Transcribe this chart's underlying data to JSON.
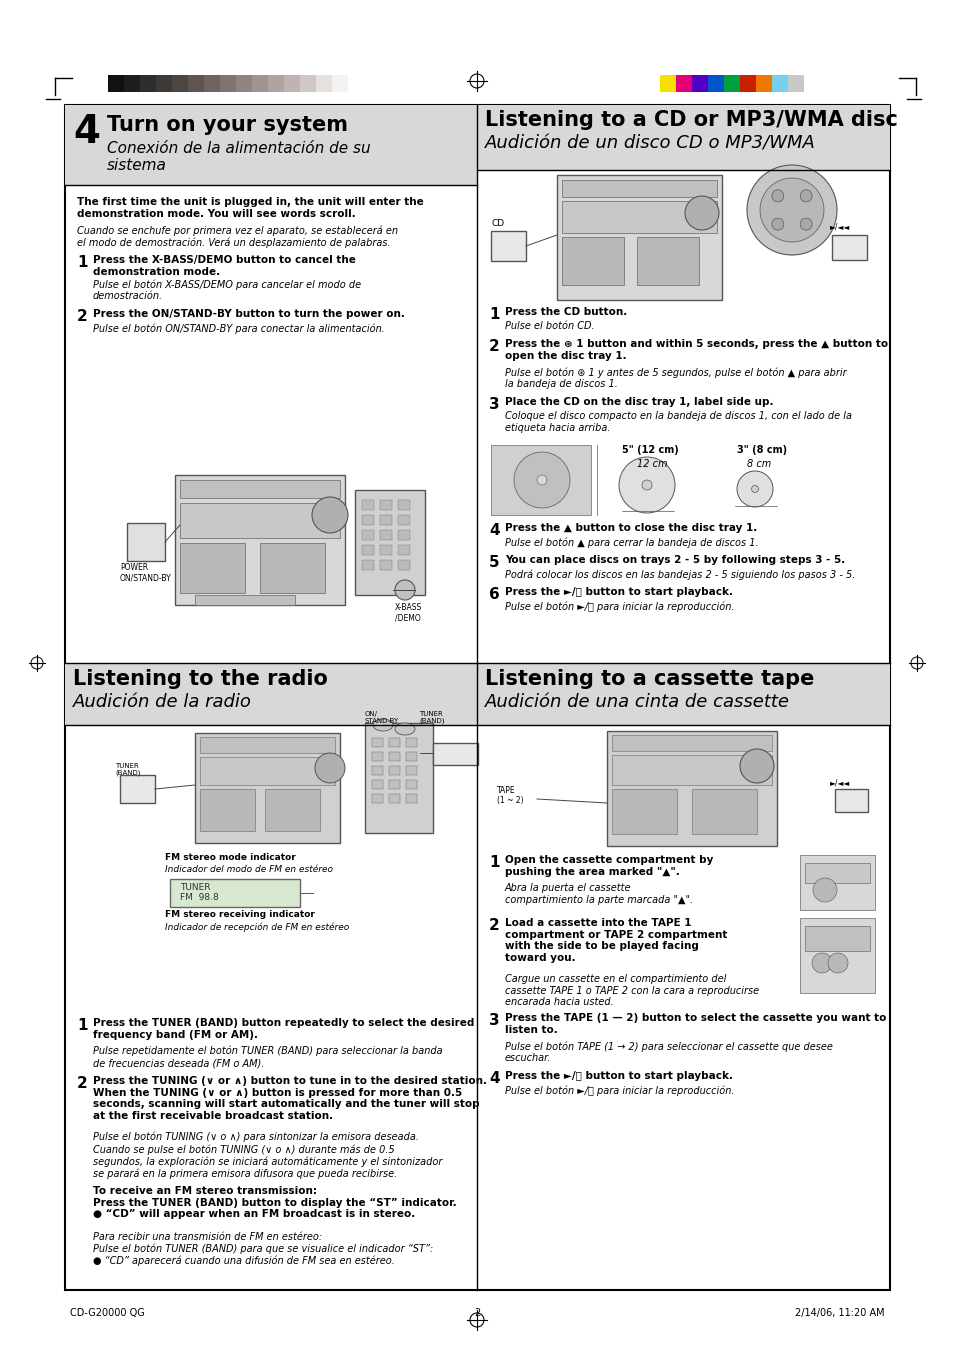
{
  "page_bg": "#ffffff",
  "header_bg": "#d8d8d8",
  "section1_num": "4",
  "section1_title_en": "Turn on your system",
  "section1_title_es": "Conexión de la alimentación de su\nsistema",
  "section2_title_en": "Listening to a CD or MP3/WMA disc",
  "section2_title_es": "Audición de un disco CD o MP3/WMA",
  "section3_title_en": "Listening to the radio",
  "section3_title_es": "Audición de la radio",
  "section4_title_en": "Listening to a cassette tape",
  "section4_title_es": "Audición de una cinta de cassette",
  "footer_left": "CD-G20000 QG",
  "footer_center": "2",
  "footer_right": "2/14/06, 11:20 AM",
  "grayscale_swatches": [
    "#111111",
    "#1e1e1e",
    "#2e2e2e",
    "#3d3a38",
    "#4d4540",
    "#5e5550",
    "#6e6560",
    "#7e7570",
    "#8e8580",
    "#9e9590",
    "#aeA5A0",
    "#beB5B0",
    "#d0c8c5",
    "#e8e0dc",
    "#f5f2f0"
  ],
  "color_swatches": [
    "#f5e000",
    "#e0007a",
    "#5000c8",
    "#0055c8",
    "#00a040",
    "#c82000",
    "#f07800",
    "#78d0f0",
    "#c8c8c8"
  ]
}
